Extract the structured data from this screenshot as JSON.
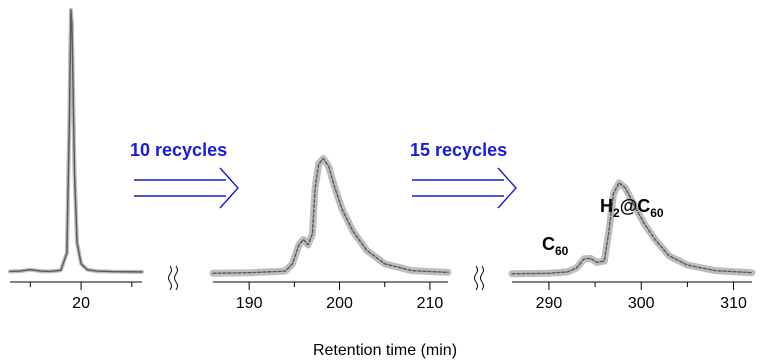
{
  "chart_data": [
    {
      "type": "line",
      "panel": "initial",
      "xlim": [
        13,
        26
      ],
      "ticks": [
        20
      ],
      "tick_labels": [
        "20"
      ],
      "minor_ticks": [
        15,
        25
      ],
      "series": [
        {
          "x": [
            13,
            14,
            15,
            15.5,
            16,
            17,
            18,
            18.6,
            18.85,
            19.0,
            19.1,
            19.2,
            19.35,
            19.6,
            20.0,
            20.6,
            21.5,
            23,
            26
          ],
          "y": [
            0.032,
            0.033,
            0.038,
            0.036,
            0.033,
            0.032,
            0.036,
            0.1,
            0.6,
            1.0,
            0.95,
            0.72,
            0.4,
            0.14,
            0.06,
            0.038,
            0.033,
            0.031,
            0.03
          ]
        }
      ]
    },
    {
      "type": "line",
      "panel": "after 10 recycles",
      "xlim": [
        186,
        212
      ],
      "ticks": [
        190,
        200,
        210
      ],
      "tick_labels": [
        "190",
        "200",
        "210"
      ],
      "minor_ticks": [
        195,
        205
      ],
      "series": [
        {
          "x": [
            186,
            190,
            194,
            194.8,
            195.5,
            196.0,
            196.5,
            197.0,
            197.3,
            197.7,
            198.2,
            198.8,
            199.5,
            200.3,
            201.5,
            203,
            205,
            208,
            212
          ],
          "y": [
            0.025,
            0.027,
            0.033,
            0.06,
            0.13,
            0.15,
            0.13,
            0.17,
            0.34,
            0.43,
            0.45,
            0.42,
            0.34,
            0.26,
            0.18,
            0.11,
            0.06,
            0.035,
            0.028
          ]
        }
      ]
    },
    {
      "type": "line",
      "panel": "after 15 recycles",
      "xlim": [
        286,
        312
      ],
      "ticks": [
        290,
        300,
        310
      ],
      "tick_labels": [
        "290",
        "300",
        "310"
      ],
      "minor_ticks": [
        295,
        305
      ],
      "series": [
        {
          "x": [
            286,
            290,
            292,
            293,
            293.8,
            294.5,
            295.2,
            296.0,
            296.5,
            297.0,
            297.6,
            298.3,
            299.2,
            300.3,
            301.5,
            303,
            305,
            308,
            312
          ],
          "y": [
            0.023,
            0.025,
            0.03,
            0.045,
            0.078,
            0.08,
            0.065,
            0.07,
            0.18,
            0.32,
            0.36,
            0.34,
            0.28,
            0.21,
            0.15,
            0.09,
            0.055,
            0.035,
            0.027
          ]
        }
      ]
    }
  ],
  "annotations": {
    "recycles_1": "10 recycles",
    "recycles_2": "15 recycles",
    "peak_small": {
      "base": "C",
      "sub": "60"
    },
    "peak_large": {
      "a": "H",
      "a_sub": "2",
      "mid": "@C",
      "b_sub": "60"
    },
    "xlabel": "Retention time (min)"
  },
  "colors": {
    "trace": "#5a5a5a",
    "trace_glow": "#bdbdbd",
    "axis": "#000000",
    "arrow": "#1a1adc",
    "annotation": "#1a1adc"
  }
}
